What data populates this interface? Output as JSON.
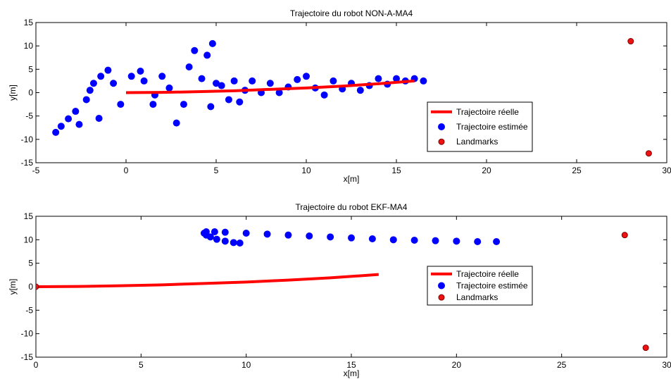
{
  "chart_data": [
    {
      "type": "scatter",
      "title": "Trajectoire du robot NON-A-MA4",
      "xlabel": "x[m]",
      "ylabel": "y[m]",
      "xlim": [
        -5,
        30
      ],
      "ylim": [
        -15,
        15
      ],
      "xticks": [
        "-5",
        "0",
        "5",
        "10",
        "15",
        "20",
        "25",
        "30"
      ],
      "yticks": [
        "15",
        "10",
        "5",
        "0",
        "-5",
        "-10",
        "-15"
      ],
      "grid": false,
      "legend_position": "center-right",
      "legend": [
        "Trajectoire réelle",
        "Trajectoire estimée",
        "Landmarks"
      ],
      "series": [
        {
          "name": "Trajectoire réelle",
          "style": "line",
          "color": "#ff0000",
          "x": [
            0,
            2,
            4,
            6,
            8,
            10,
            12,
            14,
            16
          ],
          "y": [
            0,
            0.05,
            0.2,
            0.4,
            0.7,
            1.0,
            1.4,
            1.9,
            2.5
          ]
        },
        {
          "name": "Trajectoire estimée",
          "style": "markers",
          "color": "#0000ff",
          "x": [
            -3.9,
            -3.6,
            -3.2,
            -2.8,
            -2.2,
            -2.0,
            -1.8,
            -1.4,
            -1.0,
            -0.7,
            -0.3,
            -1.5,
            -2.6,
            0.3,
            0.8,
            1.0,
            1.5,
            1.6,
            2.0,
            2.4,
            2.8,
            3.2,
            3.5,
            3.8,
            4.2,
            4.5,
            4.8,
            5.0,
            4.7,
            5.3,
            5.7,
            6.0,
            6.3,
            6.6,
            7.0,
            7.5,
            8.0,
            8.5,
            9.0,
            9.5,
            10.0,
            10.5,
            11.0,
            11.5,
            12.0,
            12.5,
            13.0,
            13.5,
            14.0,
            14.5,
            15.0,
            15.5,
            16.0,
            16.5
          ],
          "y": [
            -8.5,
            -7.2,
            -5.6,
            -4.0,
            -1.5,
            0.5,
            2.0,
            3.5,
            4.8,
            2.0,
            -2.5,
            -5.5,
            -6.8,
            3.5,
            4.6,
            2.5,
            -2.5,
            -0.5,
            3.5,
            1.0,
            -6.5,
            -2.5,
            5.5,
            9.0,
            3.0,
            8.0,
            10.5,
            2.0,
            -3.0,
            1.5,
            -1.5,
            2.5,
            -2.0,
            0.5,
            2.5,
            0.0,
            2.0,
            0.0,
            1.2,
            2.8,
            3.5,
            1.0,
            -0.5,
            2.5,
            0.8,
            2.0,
            0.5,
            1.5,
            3.0,
            1.8,
            3.0,
            2.5,
            3.0,
            2.5
          ]
        },
        {
          "name": "Landmarks",
          "style": "markers",
          "color": "#ee1111",
          "x": [
            28,
            29
          ],
          "y": [
            11,
            -13
          ]
        }
      ]
    },
    {
      "type": "scatter",
      "title": "Trajectoire du robot EKF-MA4",
      "xlabel": "x[m]",
      "ylabel": "y[m]",
      "xlim": [
        0,
        30
      ],
      "ylim": [
        -15,
        15
      ],
      "xticks": [
        "0",
        "5",
        "10",
        "15",
        "20",
        "25",
        "30"
      ],
      "yticks": [
        "15",
        "10",
        "5",
        "0",
        "-5",
        "-10",
        "-15"
      ],
      "grid": false,
      "legend_position": "center-right",
      "legend": [
        "Trajectoire réelle",
        "Trajectoire estimée",
        "Landmarks"
      ],
      "series": [
        {
          "name": "Trajectoire réelle",
          "style": "line",
          "color": "#ff0000",
          "x": [
            0,
            2,
            4,
            6,
            8,
            10,
            12,
            14,
            16.3
          ],
          "y": [
            0,
            0.05,
            0.2,
            0.4,
            0.7,
            1.0,
            1.4,
            1.9,
            2.6
          ]
        },
        {
          "name": "Trajectoire estimée",
          "style": "markers",
          "color": "#0000ff",
          "x": [
            9.7,
            9.4,
            9.0,
            8.6,
            8.3,
            8.1,
            8.0,
            8.1,
            8.5,
            9.0,
            10.0,
            11.0,
            12.0,
            13.0,
            14.0,
            15.0,
            16.0,
            17.0,
            18.0,
            19.0,
            20.0,
            21.0,
            21.9
          ],
          "y": [
            9.3,
            9.4,
            9.7,
            10.1,
            10.6,
            11.0,
            11.4,
            11.7,
            11.7,
            11.6,
            11.4,
            11.2,
            11.0,
            10.8,
            10.6,
            10.4,
            10.2,
            10.0,
            9.9,
            9.8,
            9.7,
            9.6,
            9.6
          ]
        },
        {
          "name": "Landmarks",
          "style": "markers",
          "color": "#ee1111",
          "x": [
            0,
            28,
            29
          ],
          "y": [
            0,
            11,
            -13
          ]
        }
      ]
    }
  ]
}
